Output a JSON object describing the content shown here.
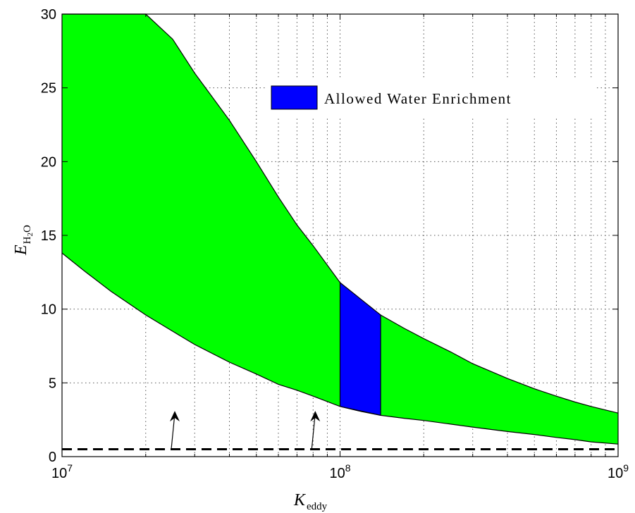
{
  "chart_data": {
    "type": "area",
    "xscale": "log",
    "xlim": [
      10000000,
      1000000000
    ],
    "ylim": [
      0,
      30
    ],
    "grid": true,
    "xlabel": {
      "main": "K",
      "sub": "eddy"
    },
    "ylabel": {
      "main": "E",
      "sub": "H",
      "sub2": "2",
      "sub3": "O"
    },
    "x_ticks": [
      {
        "value": 10000000,
        "base": "10",
        "exp": "7"
      },
      {
        "value": 100000000,
        "base": "10",
        "exp": "8"
      },
      {
        "value": 1000000000,
        "base": "10",
        "exp": "9"
      }
    ],
    "y_ticks": [
      {
        "value": 0,
        "label": "0"
      },
      {
        "value": 5,
        "label": "5"
      },
      {
        "value": 10,
        "label": "10"
      },
      {
        "value": 15,
        "label": "15"
      },
      {
        "value": 20,
        "label": "20"
      },
      {
        "value": 25,
        "label": "25"
      },
      {
        "value": 30,
        "label": "30"
      }
    ],
    "band": {
      "color": "#00ff00",
      "x": [
        10000000,
        12000000,
        15000000,
        20000000,
        25000000,
        30000000,
        40000000,
        50000000,
        60000000,
        70000000,
        80000000,
        100000000,
        120000000,
        140000000,
        170000000,
        200000000,
        250000000,
        300000000,
        400000000,
        500000000,
        600000000,
        700000000,
        800000000,
        1000000000
      ],
      "upper": [
        30,
        30,
        30,
        30,
        28.3,
        26.0,
        22.8,
        20.0,
        17.6,
        15.7,
        14.3,
        11.8,
        10.4,
        9.6,
        8.7,
        8.0,
        7.1,
        6.3,
        5.3,
        4.6,
        4.1,
        3.7,
        3.4,
        2.95
      ],
      "lower": [
        13.8,
        12.6,
        11.2,
        9.6,
        8.5,
        7.6,
        6.4,
        5.6,
        4.9,
        4.5,
        4.1,
        3.4,
        3.05,
        2.8,
        2.6,
        2.45,
        2.2,
        2.0,
        1.7,
        1.5,
        1.3,
        1.15,
        1.0,
        0.85
      ]
    },
    "highlight": {
      "name": "Allowed Water Enrichment",
      "color": "#0000ff",
      "x": [
        100000000,
        140000000
      ],
      "upper": [
        11.8,
        9.6
      ],
      "lower": [
        3.4,
        2.8
      ]
    },
    "reference_line": {
      "y": 0.5,
      "style": "dashed",
      "color": "#000000"
    },
    "arrows": [
      {
        "x": 25000000,
        "from_y": 0.5,
        "to_y": 3.1
      },
      {
        "x": 80000000,
        "from_y": 0.5,
        "to_y": 3.1
      }
    ],
    "legend": {
      "position": "top-right"
    }
  }
}
